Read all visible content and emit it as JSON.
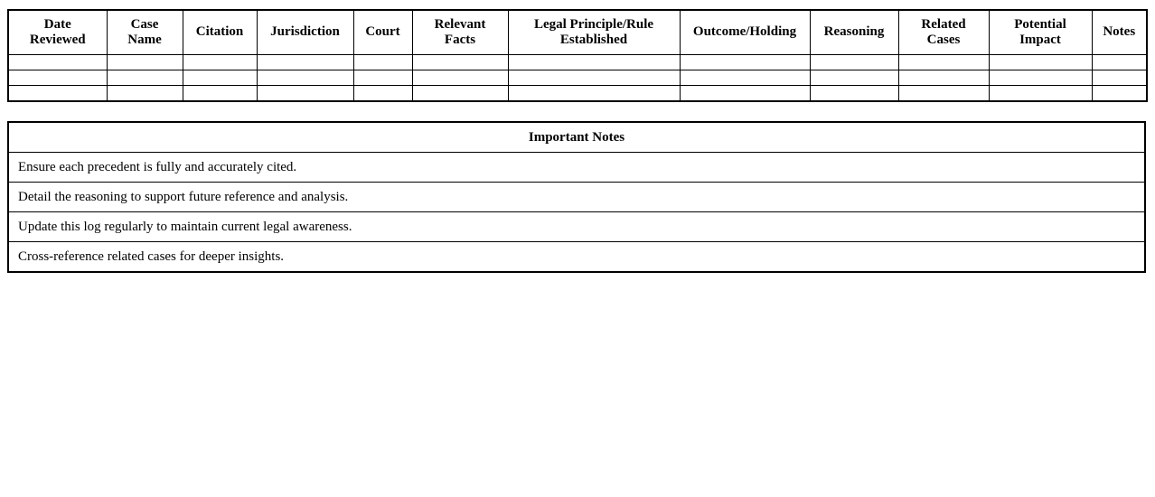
{
  "page": {
    "background_color": "#ffffff",
    "border_color": "#000000",
    "text_color": "#000000"
  },
  "precedent_log_table": {
    "columns": [
      {
        "id": "date-reviewed",
        "label": "Date\nReviewed"
      },
      {
        "id": "case-name",
        "label": "Case\nName"
      },
      {
        "id": "citation",
        "label": "Citation"
      },
      {
        "id": "jurisdiction",
        "label": "Jurisdiction"
      },
      {
        "id": "court",
        "label": "Court"
      },
      {
        "id": "relevant-facts",
        "label": "Relevant\nFacts"
      },
      {
        "id": "legal-principle",
        "label": "Legal Principle/Rule\nEstablished"
      },
      {
        "id": "outcome-holding",
        "label": "Outcome/Holding"
      },
      {
        "id": "reasoning",
        "label": "Reasoning"
      },
      {
        "id": "related-cases",
        "label": "Related\nCases"
      },
      {
        "id": "potential-impact",
        "label": "Potential\nImpact"
      },
      {
        "id": "notes",
        "label": "Notes"
      }
    ],
    "empty_row_count": 3,
    "cell_value": ""
  },
  "notes_table": {
    "title": "Important Notes",
    "rows": [
      "Ensure each precedent is fully and accurately cited.",
      "Detail the reasoning to support future reference and analysis.",
      "Update this log regularly to maintain current legal awareness.",
      "Cross-reference related cases for deeper insights."
    ]
  }
}
